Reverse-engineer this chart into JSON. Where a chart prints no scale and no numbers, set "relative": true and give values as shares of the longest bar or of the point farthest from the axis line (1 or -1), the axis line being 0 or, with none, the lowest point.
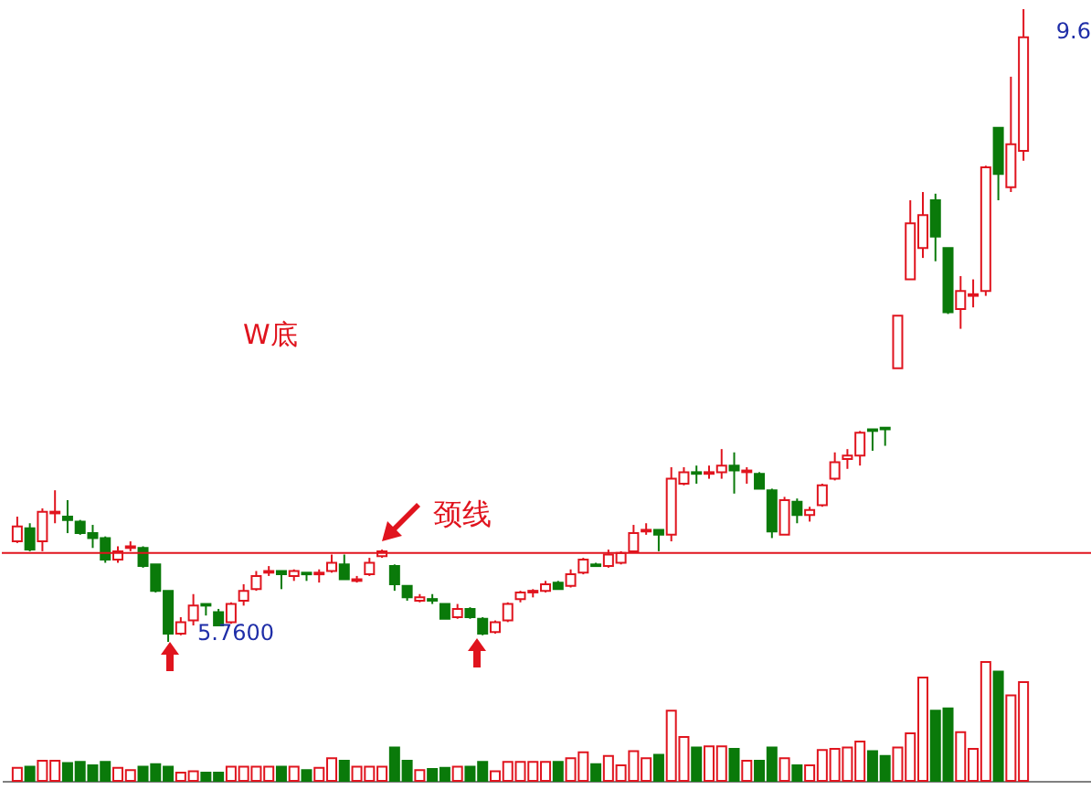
{
  "chart_data": [
    {
      "type": "candlestick",
      "categories": [
        null,
        null,
        null,
        null,
        null,
        null,
        null,
        null,
        null,
        null,
        null,
        null,
        null,
        null,
        null,
        null,
        null,
        null,
        null,
        null,
        null,
        null,
        null,
        null,
        null,
        null,
        null,
        null,
        null,
        null,
        null,
        null,
        null,
        null,
        null,
        null,
        null,
        null,
        null,
        null,
        null,
        null,
        null,
        null,
        null,
        null,
        null,
        null,
        null,
        null,
        null,
        null,
        null,
        null,
        null,
        null,
        null,
        null,
        null,
        null,
        null,
        null,
        null,
        null,
        null,
        null,
        null,
        null,
        null,
        null,
        null,
        null,
        null,
        null,
        null,
        null,
        null,
        null,
        null,
        null,
        null
      ],
      "ohlc": [
        [
          6.37,
          6.52,
          6.36,
          6.46
        ],
        [
          6.45,
          6.48,
          6.31,
          6.32
        ],
        [
          6.37,
          6.57,
          6.31,
          6.55
        ],
        [
          6.54,
          6.68,
          6.48,
          6.55
        ],
        [
          6.52,
          6.62,
          6.42,
          6.5
        ],
        [
          6.49,
          6.5,
          6.41,
          6.42
        ],
        [
          6.42,
          6.47,
          6.33,
          6.39
        ],
        [
          6.39,
          6.4,
          6.24,
          6.26
        ],
        [
          6.26,
          6.34,
          6.24,
          6.31
        ],
        [
          6.33,
          6.37,
          6.31,
          6.34
        ],
        [
          6.33,
          6.34,
          6.21,
          6.22
        ],
        [
          6.23,
          6.23,
          6.06,
          6.07
        ],
        [
          6.07,
          6.07,
          5.76,
          5.81
        ],
        [
          5.81,
          5.91,
          5.8,
          5.88
        ],
        [
          5.89,
          6.05,
          5.86,
          5.98
        ],
        [
          5.99,
          5.99,
          5.92,
          5.98
        ],
        [
          5.94,
          5.96,
          5.86,
          5.86
        ],
        [
          5.88,
          6.0,
          5.87,
          5.99
        ],
        [
          6.01,
          6.11,
          5.98,
          6.07
        ],
        [
          6.08,
          6.19,
          6.07,
          6.16
        ],
        [
          6.18,
          6.22,
          6.16,
          6.19
        ],
        [
          6.19,
          6.19,
          6.08,
          6.17
        ],
        [
          6.16,
          6.2,
          6.13,
          6.19
        ],
        [
          6.18,
          6.18,
          6.13,
          6.17
        ],
        [
          6.17,
          6.2,
          6.12,
          6.18
        ],
        [
          6.19,
          6.29,
          6.18,
          6.24
        ],
        [
          6.23,
          6.29,
          6.14,
          6.14
        ],
        [
          6.13,
          6.16,
          6.12,
          6.14
        ],
        [
          6.17,
          6.27,
          6.16,
          6.24
        ],
        [
          6.28,
          6.32,
          6.27,
          6.31
        ],
        [
          6.22,
          6.23,
          6.07,
          6.11
        ],
        [
          6.1,
          6.1,
          6.01,
          6.03
        ],
        [
          6.01,
          6.05,
          6.0,
          6.03
        ],
        [
          6.02,
          6.05,
          5.99,
          6.01
        ],
        [
          5.99,
          5.99,
          5.9,
          5.9
        ],
        [
          5.91,
          5.99,
          5.9,
          5.96
        ],
        [
          5.96,
          5.97,
          5.9,
          5.91
        ],
        [
          5.9,
          5.91,
          5.8,
          5.81
        ],
        [
          5.82,
          5.89,
          5.81,
          5.88
        ],
        [
          5.89,
          6.0,
          5.88,
          5.99
        ],
        [
          6.02,
          6.07,
          6.0,
          6.06
        ],
        [
          6.06,
          6.08,
          6.03,
          6.07
        ],
        [
          6.07,
          6.13,
          6.06,
          6.11
        ],
        [
          6.12,
          6.13,
          6.08,
          6.08
        ],
        [
          6.1,
          6.2,
          6.09,
          6.17
        ],
        [
          6.18,
          6.27,
          6.17,
          6.26
        ],
        [
          6.23,
          6.24,
          6.22,
          6.22
        ],
        [
          6.22,
          6.32,
          6.21,
          6.29
        ],
        [
          6.24,
          6.31,
          6.23,
          6.3
        ],
        [
          6.31,
          6.47,
          6.3,
          6.42
        ],
        [
          6.43,
          6.48,
          6.41,
          6.44
        ],
        [
          6.44,
          6.44,
          6.31,
          6.41
        ],
        [
          6.41,
          6.82,
          6.37,
          6.75
        ],
        [
          6.72,
          6.82,
          6.71,
          6.79
        ],
        [
          6.79,
          6.83,
          6.72,
          6.78
        ],
        [
          6.78,
          6.83,
          6.75,
          6.79
        ],
        [
          6.79,
          6.93,
          6.75,
          6.83
        ],
        [
          6.83,
          6.91,
          6.66,
          6.8
        ],
        [
          6.79,
          6.82,
          6.72,
          6.8
        ],
        [
          6.78,
          6.79,
          6.69,
          6.69
        ],
        [
          6.68,
          6.69,
          6.39,
          6.43
        ],
        [
          6.41,
          6.64,
          6.41,
          6.62
        ],
        [
          6.61,
          6.63,
          6.48,
          6.53
        ],
        [
          6.53,
          6.58,
          6.49,
          6.56
        ],
        [
          6.59,
          6.72,
          6.58,
          6.71
        ],
        [
          6.75,
          6.91,
          6.74,
          6.85
        ],
        [
          6.87,
          6.93,
          6.81,
          6.89
        ],
        [
          6.89,
          7.04,
          6.83,
          7.03
        ],
        [
          7.05,
          7.05,
          6.92,
          7.04
        ],
        [
          7.06,
          7.06,
          6.95,
          7.05
        ],
        [
          7.42,
          7.74,
          7.42,
          7.74
        ],
        [
          7.96,
          8.44,
          7.96,
          8.3
        ],
        [
          8.15,
          8.49,
          8.09,
          8.35
        ],
        [
          8.44,
          8.48,
          8.07,
          8.22
        ],
        [
          8.15,
          8.15,
          7.75,
          7.76
        ],
        [
          7.78,
          7.98,
          7.66,
          7.89
        ],
        [
          7.86,
          7.96,
          7.79,
          7.87
        ],
        [
          7.89,
          8.65,
          7.86,
          8.64
        ],
        [
          8.88,
          8.88,
          8.44,
          8.6
        ],
        [
          8.52,
          9.19,
          8.49,
          8.78
        ],
        [
          8.74,
          9.6,
          8.68,
          9.43
        ]
      ],
      "colors": [
        "#e0141e",
        "#0a7a0a",
        "#e0141e",
        "#e0141e",
        "#0a7a0a",
        "#0a7a0a",
        "#0a7a0a",
        "#0a7a0a",
        "#e0141e",
        "#e0141e",
        "#0a7a0a",
        "#0a7a0a",
        "#0a7a0a",
        "#e0141e",
        "#e0141e",
        "#0a7a0a",
        "#0a7a0a",
        "#e0141e",
        "#e0141e",
        "#e0141e",
        "#e0141e",
        "#0a7a0a",
        "#e0141e",
        "#0a7a0a",
        "#e0141e",
        "#e0141e",
        "#0a7a0a",
        "#e0141e",
        "#e0141e",
        "#e0141e",
        "#0a7a0a",
        "#0a7a0a",
        "#e0141e",
        "#0a7a0a",
        "#0a7a0a",
        "#e0141e",
        "#0a7a0a",
        "#0a7a0a",
        "#e0141e",
        "#e0141e",
        "#e0141e",
        "#e0141e",
        "#e0141e",
        "#0a7a0a",
        "#e0141e",
        "#e0141e",
        "#0a7a0a",
        "#e0141e",
        "#e0141e",
        "#e0141e",
        "#e0141e",
        "#0a7a0a",
        "#e0141e",
        "#e0141e",
        "#0a7a0a",
        "#e0141e",
        "#e0141e",
        "#0a7a0a",
        "#e0141e",
        "#0a7a0a",
        "#0a7a0a",
        "#e0141e",
        "#0a7a0a",
        "#e0141e",
        "#e0141e",
        "#e0141e",
        "#e0141e",
        "#e0141e",
        "#0a7a0a",
        "#0a7a0a",
        "#e0141e",
        "#e0141e",
        "#e0141e",
        "#0a7a0a",
        "#0a7a0a",
        "#e0141e",
        "#e0141e",
        "#e0141e",
        "#0a7a0a",
        "#e0141e",
        "#e0141e"
      ],
      "ref_lines": [
        {
          "axis": "y",
          "value": 6.3,
          "label": "颈线",
          "color": "#e0141e"
        }
      ],
      "annotations": [
        "W底",
        "5.7600",
        "9.6"
      ]
    },
    {
      "type": "bar",
      "relative": true,
      "categories": [
        null,
        null,
        null,
        null,
        null,
        null,
        null,
        null,
        null,
        null,
        null,
        null,
        null,
        null,
        null,
        null,
        null,
        null,
        null,
        null,
        null,
        null,
        null,
        null,
        null,
        null,
        null,
        null,
        null,
        null,
        null,
        null,
        null,
        null,
        null,
        null,
        null,
        null,
        null,
        null,
        null,
        null,
        null,
        null,
        null,
        null,
        null,
        null,
        null,
        null,
        null,
        null,
        null,
        null,
        null,
        null,
        null,
        null,
        null,
        null,
        null,
        null,
        null,
        null,
        null,
        null,
        null,
        null,
        null,
        null,
        null,
        null,
        null,
        null,
        null,
        null,
        null,
        null,
        null,
        null,
        null
      ],
      "values": [
        0.11,
        0.12,
        0.17,
        0.17,
        0.15,
        0.16,
        0.13,
        0.16,
        0.11,
        0.09,
        0.12,
        0.14,
        0.12,
        0.07,
        0.08,
        0.07,
        0.07,
        0.12,
        0.12,
        0.12,
        0.12,
        0.12,
        0.12,
        0.09,
        0.11,
        0.19,
        0.17,
        0.12,
        0.12,
        0.12,
        0.28,
        0.17,
        0.09,
        0.1,
        0.11,
        0.12,
        0.12,
        0.16,
        0.08,
        0.16,
        0.16,
        0.16,
        0.16,
        0.16,
        0.19,
        0.24,
        0.14,
        0.21,
        0.13,
        0.25,
        0.19,
        0.22,
        0.59,
        0.37,
        0.28,
        0.29,
        0.29,
        0.27,
        0.17,
        0.17,
        0.28,
        0.19,
        0.13,
        0.13,
        0.26,
        0.27,
        0.28,
        0.33,
        0.25,
        0.21,
        0.28,
        0.4,
        0.87,
        0.59,
        0.61,
        0.41,
        0.27,
        1,
        0.92,
        0.72,
        0.83
      ],
      "colors": [
        "#e0141e",
        "#0a7a0a",
        "#e0141e",
        "#e0141e",
        "#0a7a0a",
        "#0a7a0a",
        "#0a7a0a",
        "#0a7a0a",
        "#e0141e",
        "#e0141e",
        "#0a7a0a",
        "#0a7a0a",
        "#0a7a0a",
        "#e0141e",
        "#e0141e",
        "#0a7a0a",
        "#0a7a0a",
        "#e0141e",
        "#e0141e",
        "#e0141e",
        "#e0141e",
        "#0a7a0a",
        "#e0141e",
        "#0a7a0a",
        "#e0141e",
        "#e0141e",
        "#0a7a0a",
        "#e0141e",
        "#e0141e",
        "#e0141e",
        "#0a7a0a",
        "#0a7a0a",
        "#e0141e",
        "#0a7a0a",
        "#0a7a0a",
        "#e0141e",
        "#0a7a0a",
        "#0a7a0a",
        "#e0141e",
        "#e0141e",
        "#e0141e",
        "#e0141e",
        "#e0141e",
        "#0a7a0a",
        "#e0141e",
        "#e0141e",
        "#0a7a0a",
        "#e0141e",
        "#e0141e",
        "#e0141e",
        "#e0141e",
        "#0a7a0a",
        "#e0141e",
        "#e0141e",
        "#0a7a0a",
        "#e0141e",
        "#e0141e",
        "#0a7a0a",
        "#e0141e",
        "#0a7a0a",
        "#0a7a0a",
        "#e0141e",
        "#0a7a0a",
        "#e0141e",
        "#e0141e",
        "#e0141e",
        "#e0141e",
        "#e0141e",
        "#0a7a0a",
        "#0a7a0a",
        "#e0141e",
        "#e0141e",
        "#e0141e",
        "#0a7a0a",
        "#0a7a0a",
        "#e0141e",
        "#e0141e",
        "#e0141e",
        "#0a7a0a",
        "#e0141e",
        "#e0141e"
      ]
    }
  ]
}
